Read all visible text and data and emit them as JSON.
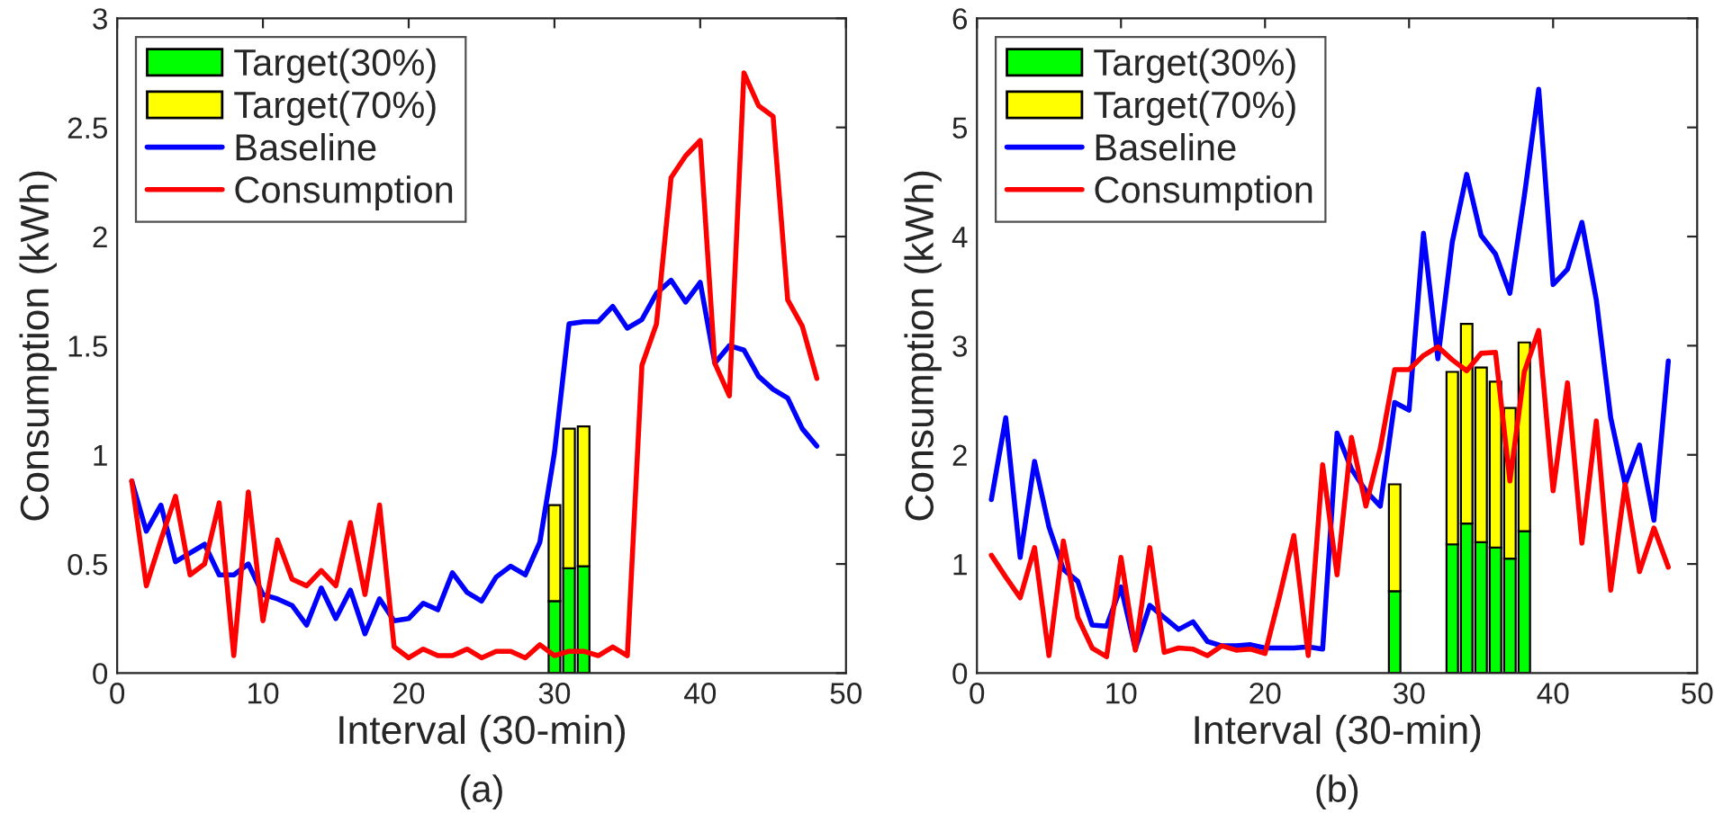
{
  "chart_data": [
    {
      "type": "line",
      "xlabel": "Interval (30-min)",
      "ylabel": "Consumption (kWh)",
      "annotations": [
        "(a)"
      ],
      "stacked": true,
      "legend": "top left",
      "grid": false,
      "xlim": [
        0,
        50
      ],
      "xticks": [
        0,
        10,
        20,
        30,
        40,
        50
      ],
      "ylim": [
        0,
        3
      ],
      "yticks": [
        0,
        0.5,
        1,
        1.5,
        2,
        2.5,
        3
      ],
      "x": [
        1,
        2,
        3,
        4,
        5,
        6,
        7,
        8,
        9,
        10,
        11,
        12,
        13,
        14,
        15,
        16,
        17,
        18,
        19,
        20,
        21,
        22,
        23,
        24,
        25,
        26,
        27,
        28,
        29,
        30,
        31,
        32,
        33,
        34,
        35,
        36,
        37,
        38,
        39,
        40,
        41,
        42,
        43,
        44,
        45,
        46,
        47,
        48
      ],
      "series": [
        {
          "name": "Target(30%)",
          "type": "bar",
          "color": "#00ff00",
          "x": [
            30,
            31,
            32
          ],
          "values": [
            0.33,
            0.48,
            0.49
          ]
        },
        {
          "name": "Target(70%)",
          "type": "bar",
          "color": "#ffff00",
          "x": [
            30,
            31,
            32
          ],
          "values": [
            0.44,
            0.64,
            0.64
          ]
        },
        {
          "name": "Baseline",
          "color": "#0000ff",
          "values": [
            0.88,
            0.65,
            0.77,
            0.51,
            0.55,
            0.59,
            0.45,
            0.45,
            0.5,
            0.36,
            0.34,
            0.31,
            0.22,
            0.39,
            0.25,
            0.38,
            0.18,
            0.34,
            0.24,
            0.25,
            0.32,
            0.29,
            0.46,
            0.37,
            0.33,
            0.44,
            0.49,
            0.45,
            0.6,
            1.01,
            1.6,
            1.61,
            1.61,
            1.68,
            1.58,
            1.62,
            1.74,
            1.8,
            1.7,
            1.79,
            1.42,
            1.5,
            1.48,
            1.36,
            1.3,
            1.26,
            1.12,
            1.04
          ]
        },
        {
          "name": "Consumption",
          "color": "#ff0000",
          "values": [
            0.88,
            0.4,
            0.61,
            0.81,
            0.45,
            0.5,
            0.78,
            0.08,
            0.83,
            0.24,
            0.61,
            0.43,
            0.4,
            0.47,
            0.4,
            0.69,
            0.36,
            0.77,
            0.12,
            0.07,
            0.11,
            0.08,
            0.08,
            0.11,
            0.07,
            0.1,
            0.1,
            0.07,
            0.13,
            0.08,
            0.1,
            0.1,
            0.08,
            0.12,
            0.08,
            1.41,
            1.6,
            2.27,
            2.37,
            2.44,
            1.42,
            1.27,
            2.75,
            2.6,
            2.55,
            1.71,
            1.59,
            1.35
          ]
        }
      ]
    },
    {
      "type": "line",
      "xlabel": "Interval (30-min)",
      "ylabel": "Consumption (kWh)",
      "annotations": [
        "(b)"
      ],
      "stacked": true,
      "legend": "top left",
      "grid": false,
      "xlim": [
        0,
        50
      ],
      "xticks": [
        0,
        10,
        20,
        30,
        40,
        50
      ],
      "ylim": [
        0,
        6
      ],
      "yticks": [
        0,
        1,
        2,
        3,
        4,
        5,
        6
      ],
      "x": [
        1,
        2,
        3,
        4,
        5,
        6,
        7,
        8,
        9,
        10,
        11,
        12,
        13,
        14,
        15,
        16,
        17,
        18,
        19,
        20,
        21,
        22,
        23,
        24,
        25,
        26,
        27,
        28,
        29,
        30,
        31,
        32,
        33,
        34,
        35,
        36,
        37,
        38,
        39,
        40,
        41,
        42,
        43,
        44,
        45,
        46,
        47,
        48
      ],
      "series": [
        {
          "name": "Target(30%)",
          "type": "bar",
          "color": "#00ff00",
          "x": [
            29,
            33,
            34,
            35,
            36,
            37,
            38
          ],
          "values": [
            0.75,
            1.18,
            1.37,
            1.2,
            1.15,
            1.05,
            1.3
          ]
        },
        {
          "name": "Target(70%)",
          "type": "bar",
          "color": "#ffff00",
          "x": [
            29,
            33,
            34,
            35,
            36,
            37,
            38
          ],
          "values": [
            0.98,
            1.58,
            1.83,
            1.6,
            1.52,
            1.38,
            1.73
          ]
        },
        {
          "name": "Baseline",
          "color": "#0000ff",
          "values": [
            1.59,
            2.34,
            1.06,
            1.94,
            1.34,
            0.95,
            0.84,
            0.44,
            0.43,
            0.79,
            0.22,
            0.62,
            0.51,
            0.4,
            0.47,
            0.29,
            0.25,
            0.25,
            0.26,
            0.23,
            0.23,
            0.23,
            0.24,
            0.22,
            2.2,
            1.87,
            1.67,
            1.53,
            2.48,
            2.41,
            4.03,
            2.88,
            3.95,
            4.57,
            4.01,
            3.84,
            3.48,
            4.37,
            5.35,
            3.56,
            3.7,
            4.13,
            3.42,
            2.34,
            1.73,
            2.09,
            1.4,
            2.86
          ]
        },
        {
          "name": "Consumption",
          "color": "#ff0000",
          "values": [
            1.08,
            0.88,
            0.69,
            1.15,
            0.16,
            1.21,
            0.51,
            0.23,
            0.15,
            1.06,
            0.21,
            1.15,
            0.19,
            0.23,
            0.22,
            0.16,
            0.25,
            0.21,
            0.22,
            0.18,
            0.7,
            1.26,
            0.16,
            1.91,
            0.9,
            2.16,
            1.53,
            2.06,
            2.78,
            2.78,
            2.91,
            2.99,
            2.87,
            2.77,
            2.93,
            2.94,
            1.76,
            2.76,
            3.14,
            1.67,
            2.66,
            1.19,
            2.31,
            0.76,
            1.73,
            0.93,
            1.33,
            0.97
          ]
        }
      ]
    }
  ]
}
